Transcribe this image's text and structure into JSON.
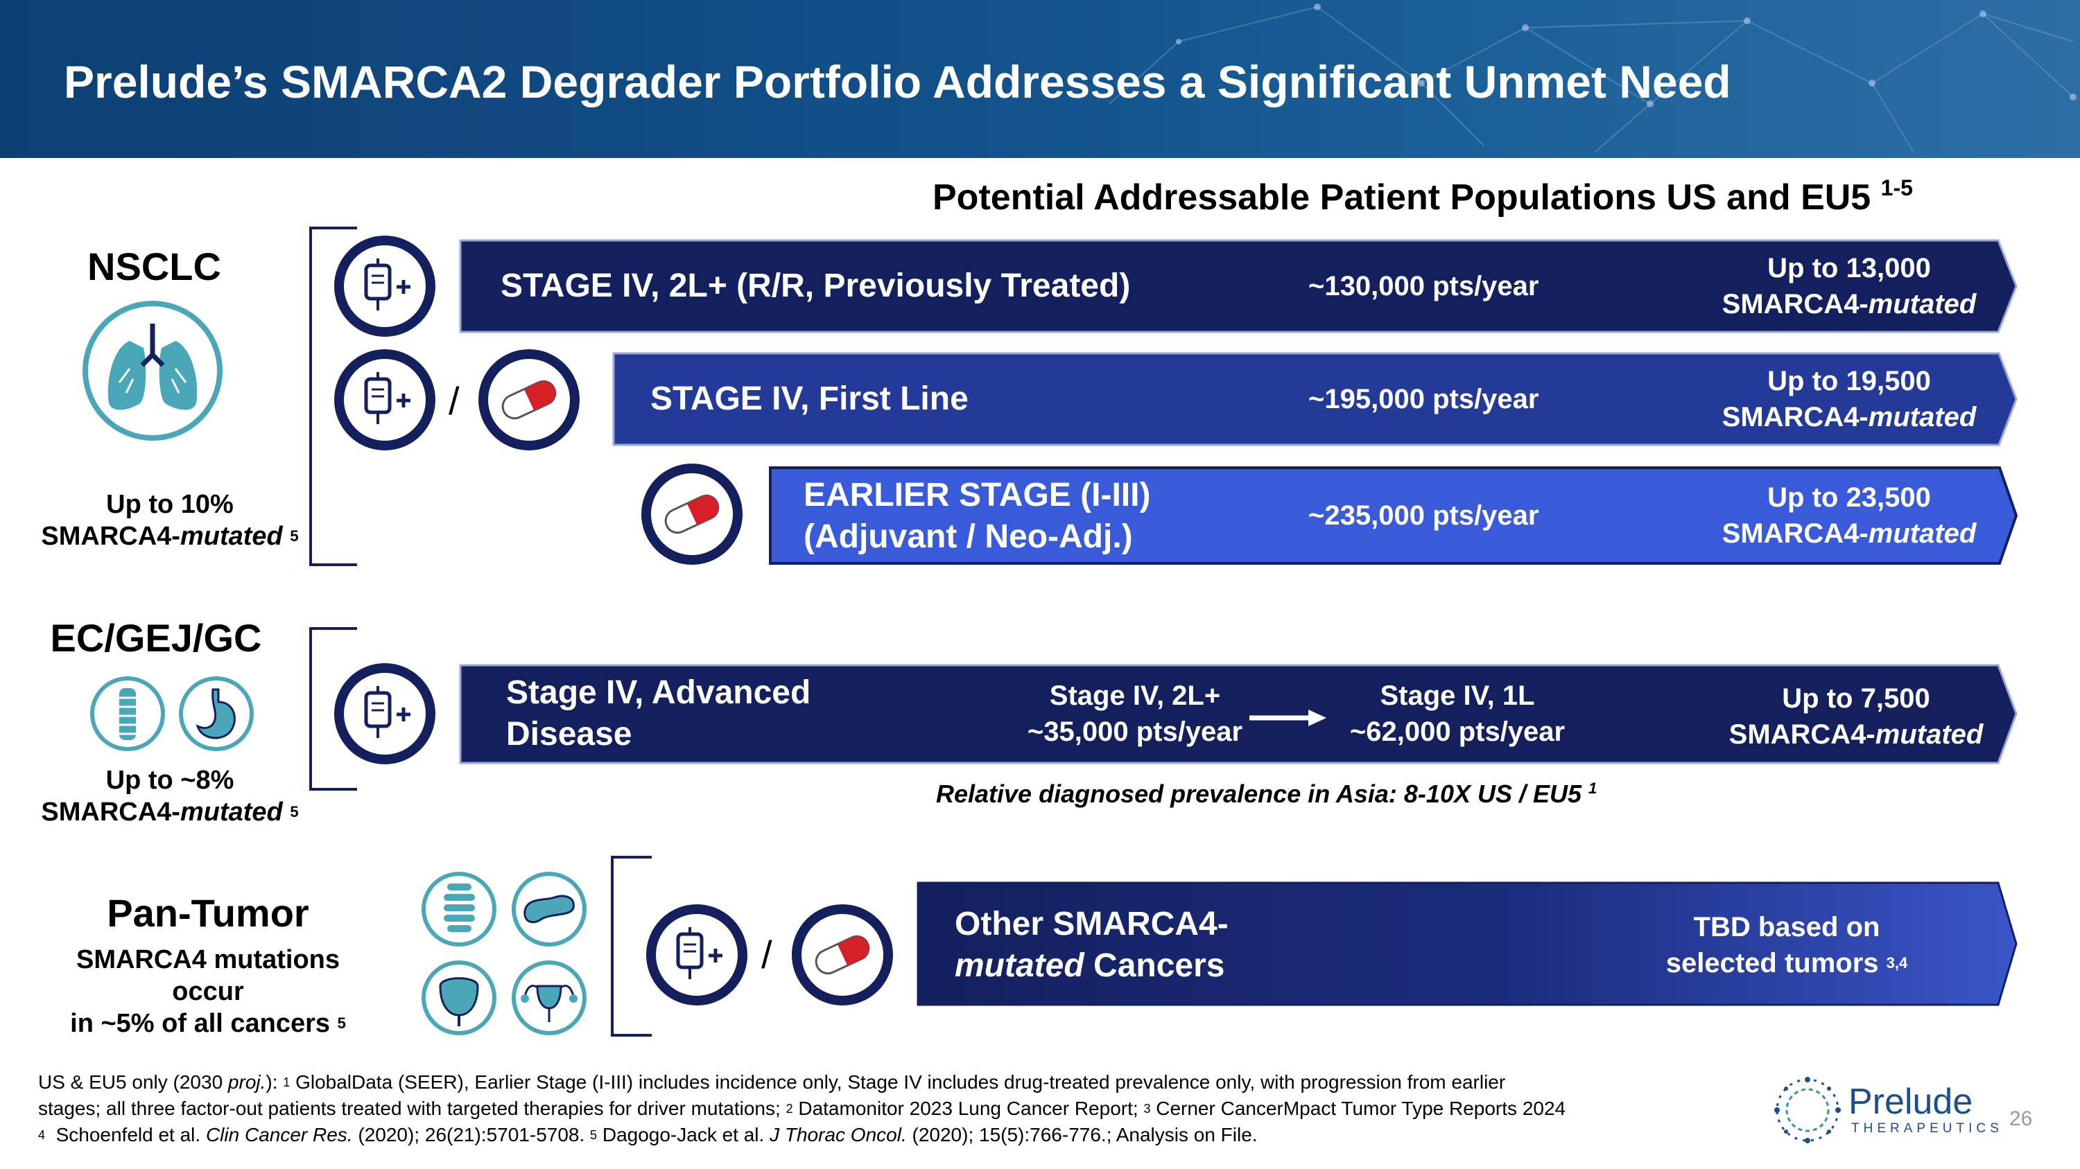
{
  "title": "Prelude’s SMARCA2 Degrader Portfolio Addresses a Significant Unmet Need",
  "subheading": {
    "text": "Potential Addressable Patient Populations US and EU5",
    "sup": "1-5"
  },
  "nsclc": {
    "name": "NSCLC",
    "stat_line1": "Up to 10%",
    "stat_line2_prefix": "SMARCA4-",
    "stat_line2_italic": "mutated",
    "stat_sup": "5",
    "rows": [
      {
        "label": "STAGE IV, 2L+ (R/R, Previously Treated)",
        "pts": "~130,000 pts/year",
        "up_to": "Up to 13,000",
        "mut_prefix": "SMARCA4-",
        "mut_italic": "mutated"
      },
      {
        "label": "STAGE IV, First Line",
        "pts": "~195,000 pts/year",
        "up_to": "Up to 19,500",
        "mut_prefix": "SMARCA4-",
        "mut_italic": "mutated"
      },
      {
        "label_line1": "EARLIER STAGE (I-III)",
        "label_line2": "(Adjuvant / Neo-Adj.)",
        "pts": "~235,000 pts/year",
        "up_to": "Up to 23,500",
        "mut_prefix": "SMARCA4-",
        "mut_italic": "mutated"
      }
    ]
  },
  "ec": {
    "name": "EC/GEJ/GC",
    "stat_line1": "Up to ~8%",
    "stat_line2_prefix": "SMARCA4-",
    "stat_line2_italic": "mutated",
    "stat_sup": "5",
    "row": {
      "label_line1": "Stage IV, Advanced",
      "label_line2": "Disease",
      "from_line1": "Stage IV, 2L+",
      "from_line2": "~35,000 pts/year",
      "to_line1": "Stage IV, 1L",
      "to_line2": "~62,000 pts/year",
      "up_to": "Up to 7,500",
      "mut_prefix": "SMARCA4-",
      "mut_italic": "mutated"
    },
    "note": "Relative diagnosed prevalence in Asia:  8-10X US / EU5",
    "note_sup": "1"
  },
  "pan": {
    "name": "Pan-Tumor",
    "stat_line1": "SMARCA4 mutations occur",
    "stat_line2": "in ~5% of all cancers",
    "stat_sup": "5",
    "row": {
      "label_line1": "Other SMARCA4-",
      "label_line2_italic": "mutated",
      "label_line2_rest": " Cancers",
      "right_line1": "TBD based on",
      "right_line2": "selected tumors",
      "right_sup": "3,4"
    }
  },
  "slash": "/",
  "footnote": {
    "l1_a": "US & EU5 only (2030 ",
    "l1_italic": "proj.",
    "l1_b": "): ",
    "s1": "1",
    "l1_c": " GlobalData (SEER), Earlier Stage (I-III) includes incidence only, Stage IV includes drug-treated prevalence only, with progression from earlier",
    "l2_a": "stages; all three factor-out patients treated with targeted therapies for driver mutations; ",
    "s2": "2",
    "l2_b": " Datamonitor 2023 Lung Cancer Report; ",
    "s3": "3",
    "l2_c": " Cerner CancerMpact Tumor Type Reports 2024",
    "s4": "4",
    "l3_a": "  Schoenfeld et al. ",
    "l3_i1": "Clin Cancer Res.",
    "l3_b": " (2020); 26(21):5701-5708. ",
    "s5": "5",
    "l3_c": " Dagogo-Jack et al. ",
    "l3_i2": "J Thorac Oncol.",
    "l3_d": " (2020); 15(5):766-776.; Analysis on File."
  },
  "logo": {
    "name": "Prelude",
    "sub": "THERAPEUTICS"
  },
  "page_number": "26",
  "colors": {
    "dark_navy": "#14205e",
    "mid_blue": "#2a3a96",
    "bright_blue": "#3a5bd9",
    "teal": "#4aa7b8",
    "red": "#d61f26"
  }
}
